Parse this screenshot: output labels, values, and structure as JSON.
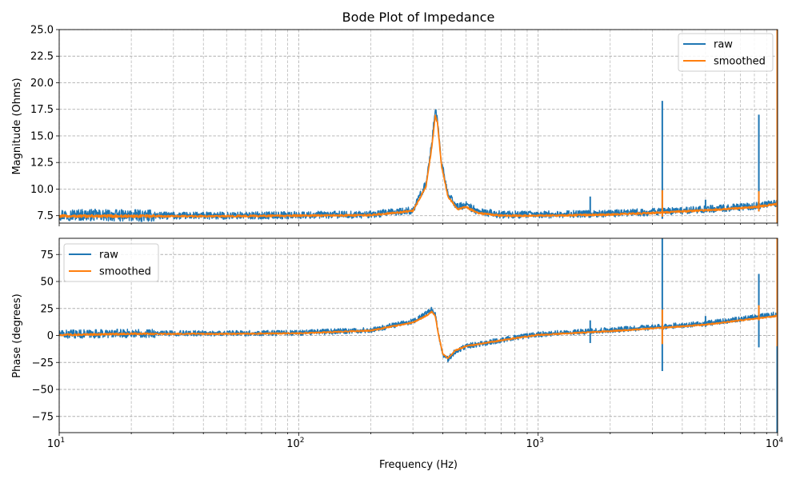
{
  "chart_data": [
    {
      "type": "line",
      "title": "Bode Plot of Impedance",
      "xlabel": "",
      "ylabel": "Magnitude (Ohms)",
      "xscale": "log",
      "xlim": [
        10,
        10000
      ],
      "ylim": [
        6.8,
        25
      ],
      "yticks": [
        7.5,
        10.0,
        12.5,
        15.0,
        17.5,
        20.0,
        22.5,
        25.0
      ],
      "ytick_labels": [
        "7.5",
        "10.0",
        "12.5",
        "15.0",
        "17.5",
        "20.0",
        "22.5",
        "25.0"
      ],
      "grid": true,
      "legend_position": "top-right",
      "series": [
        {
          "name": "raw",
          "color": "#1f77b4",
          "noise": 0.35,
          "points": [
            [
              10,
              7.6
            ],
            [
              20,
              7.5
            ],
            [
              50,
              7.5
            ],
            [
              100,
              7.55
            ],
            [
              200,
              7.6
            ],
            [
              300,
              8.0
            ],
            [
              340,
              10.5
            ],
            [
              360,
              14.5
            ],
            [
              372,
              17.5
            ],
            [
              380,
              16.5
            ],
            [
              395,
              12.5
            ],
            [
              420,
              9.5
            ],
            [
              460,
              8.3
            ],
            [
              500,
              8.5
            ],
            [
              560,
              7.9
            ],
            [
              700,
              7.6
            ],
            [
              1000,
              7.6
            ],
            [
              2000,
              7.7
            ],
            [
              3000,
              7.85
            ],
            [
              5000,
              8.1
            ],
            [
              8000,
              8.4
            ],
            [
              10000,
              8.7
            ]
          ],
          "spikes": [
            [
              1650,
              7.3,
              9.3
            ],
            [
              3300,
              7.2,
              18.3
            ],
            [
              5000,
              7.9,
              9.0
            ],
            [
              8350,
              7.9,
              17.0
            ],
            [
              10000,
              6.8,
              25.0
            ]
          ]
        },
        {
          "name": "smoothed",
          "color": "#ff7f0e",
          "noise": 0.08,
          "points": [
            [
              10,
              7.45
            ],
            [
              20,
              7.45
            ],
            [
              50,
              7.45
            ],
            [
              100,
              7.5
            ],
            [
              200,
              7.55
            ],
            [
              300,
              7.95
            ],
            [
              340,
              10.2
            ],
            [
              360,
              14.0
            ],
            [
              372,
              16.9
            ],
            [
              380,
              16.2
            ],
            [
              395,
              12.2
            ],
            [
              420,
              9.3
            ],
            [
              460,
              8.1
            ],
            [
              500,
              8.3
            ],
            [
              560,
              7.75
            ],
            [
              700,
              7.5
            ],
            [
              1000,
              7.5
            ],
            [
              2000,
              7.6
            ],
            [
              3000,
              7.75
            ],
            [
              5000,
              8.0
            ],
            [
              8000,
              8.3
            ],
            [
              10000,
              8.6
            ]
          ],
          "spikes": [
            [
              3300,
              7.4,
              9.9
            ],
            [
              8350,
              7.9,
              9.8
            ],
            [
              10000,
              6.8,
              25.0
            ]
          ]
        }
      ]
    },
    {
      "type": "line",
      "title": "",
      "xlabel": "Frequency (Hz)",
      "ylabel": "Phase (degrees)",
      "xscale": "log",
      "xlim": [
        10,
        10000
      ],
      "ylim": [
        -90,
        90
      ],
      "xticks": [
        10,
        100,
        1000,
        10000
      ],
      "xtick_base": "10",
      "xtick_exponents": [
        "1",
        "2",
        "3",
        "4"
      ],
      "yticks": [
        -75,
        -50,
        -25,
        0,
        25,
        50,
        75
      ],
      "ytick_labels": [
        "−75",
        "−50",
        "−25",
        "0",
        "25",
        "50",
        "75"
      ],
      "grid": true,
      "legend_position": "top-left",
      "series": [
        {
          "name": "raw",
          "color": "#1f77b4",
          "noise": 2.5,
          "points": [
            [
              10,
              1
            ],
            [
              20,
              2
            ],
            [
              50,
              2
            ],
            [
              100,
              2.5
            ],
            [
              200,
              5
            ],
            [
              300,
              13
            ],
            [
              340,
              20
            ],
            [
              360,
              24
            ],
            [
              372,
              20
            ],
            [
              385,
              0
            ],
            [
              400,
              -18
            ],
            [
              420,
              -22
            ],
            [
              450,
              -15
            ],
            [
              500,
              -10
            ],
            [
              600,
              -7
            ],
            [
              800,
              -2
            ],
            [
              1000,
              1
            ],
            [
              2000,
              5
            ],
            [
              3000,
              7.5
            ],
            [
              5000,
              11
            ],
            [
              8000,
              17
            ],
            [
              10000,
              20
            ]
          ],
          "spikes": [
            [
              1650,
              -7,
              14
            ],
            [
              3300,
              -33,
              90
            ],
            [
              5000,
              8,
              18
            ],
            [
              8350,
              -11,
              57
            ],
            [
              10000,
              -90,
              90
            ]
          ]
        },
        {
          "name": "smoothed",
          "color": "#ff7f0e",
          "noise": 0.5,
          "points": [
            [
              10,
              0.5
            ],
            [
              20,
              1.5
            ],
            [
              50,
              1.5
            ],
            [
              100,
              2
            ],
            [
              200,
              4.5
            ],
            [
              300,
              12
            ],
            [
              340,
              18
            ],
            [
              360,
              22
            ],
            [
              372,
              18
            ],
            [
              385,
              -1
            ],
            [
              400,
              -17
            ],
            [
              420,
              -21
            ],
            [
              450,
              -14
            ],
            [
              500,
              -10
            ],
            [
              600,
              -7
            ],
            [
              800,
              -2.5
            ],
            [
              1000,
              0.5
            ],
            [
              2000,
              4
            ],
            [
              3000,
              6.5
            ],
            [
              5000,
              10
            ],
            [
              8000,
              15.5
            ],
            [
              10000,
              18
            ]
          ],
          "spikes": [
            [
              3300,
              -8,
              24
            ],
            [
              8350,
              14,
              28
            ],
            [
              10000,
              -10,
              90
            ]
          ]
        }
      ]
    }
  ]
}
